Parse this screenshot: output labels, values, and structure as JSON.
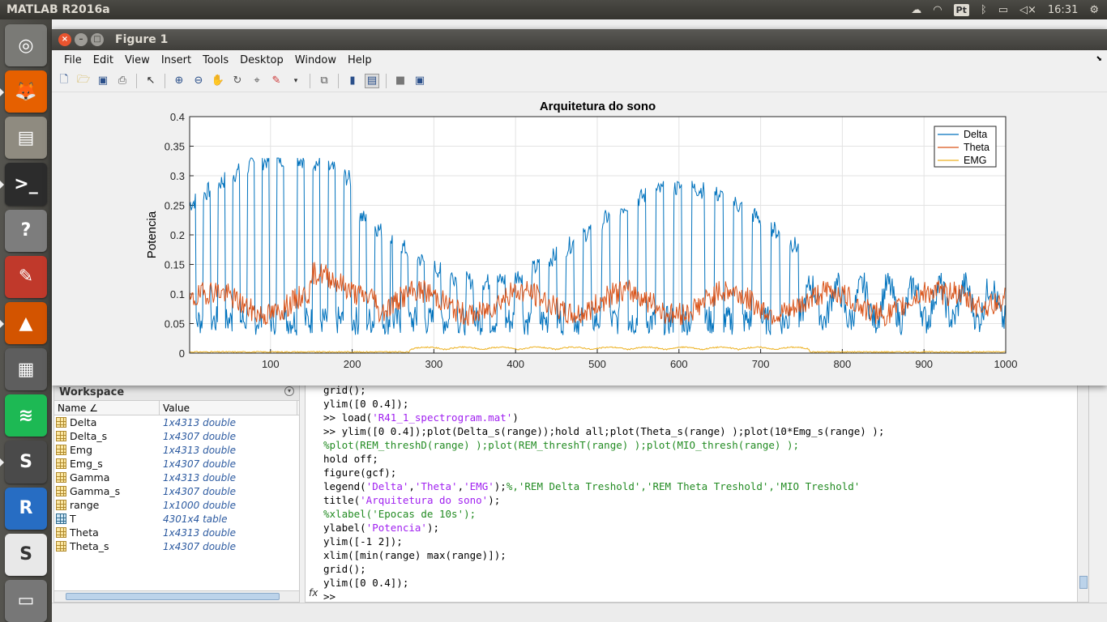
{
  "topbar": {
    "app_title": "MATLAB R2016a",
    "keyboard_indicator": "Pt",
    "clock": "16:31"
  },
  "launcher": {
    "items": [
      {
        "name": "dash",
        "color": "#7a7a76"
      },
      {
        "name": "firefox",
        "color": "#e66000"
      },
      {
        "name": "files",
        "color": "#8f8b80"
      },
      {
        "name": "terminal",
        "color": "#2c2c2c"
      },
      {
        "name": "help",
        "color": "#7d7d7d"
      },
      {
        "name": "document-viewer",
        "color": "#c0392b"
      },
      {
        "name": "matlab",
        "color": "#d35400"
      },
      {
        "name": "calculator",
        "color": "#5e5e5e"
      },
      {
        "name": "spotify",
        "color": "#1db954"
      },
      {
        "name": "sublime-text",
        "color": "#4a4a4a"
      },
      {
        "name": "r-language",
        "color": "#276dc3"
      },
      {
        "name": "slack",
        "color": "#e8e8e8"
      },
      {
        "name": "trash",
        "color": "#777"
      }
    ]
  },
  "figure": {
    "title": "Figure 1",
    "menu": [
      "File",
      "Edit",
      "View",
      "Insert",
      "Tools",
      "Desktop",
      "Window",
      "Help"
    ]
  },
  "chart_data": {
    "type": "line",
    "title": "Arquitetura do sono",
    "xlabel": "",
    "ylabel": "Potencia",
    "xlim": [
      1,
      1000
    ],
    "ylim": [
      0,
      0.4
    ],
    "xticks": [
      100,
      200,
      300,
      400,
      500,
      600,
      700,
      800,
      900,
      1000
    ],
    "yticks": [
      "0",
      "0.05",
      "0.1",
      "0.15",
      "0.2",
      "0.25",
      "0.3",
      "0.35",
      "0.4"
    ],
    "grid": true,
    "legend_location": "top-right",
    "series": [
      {
        "name": "Delta",
        "color": "#0072bd"
      },
      {
        "name": "Theta",
        "color": "#d95319"
      },
      {
        "name": "EMG",
        "color": "#edb120"
      }
    ]
  },
  "workspace": {
    "title": "Workspace",
    "col_name": "Name ∠",
    "col_value": "Value",
    "rows": [
      {
        "name": "Delta",
        "value": "1x4313 double",
        "kind": "double"
      },
      {
        "name": "Delta_s",
        "value": "1x4307 double",
        "kind": "double"
      },
      {
        "name": "Emg",
        "value": "1x4313 double",
        "kind": "double"
      },
      {
        "name": "Emg_s",
        "value": "1x4307 double",
        "kind": "double"
      },
      {
        "name": "Gamma",
        "value": "1x4313 double",
        "kind": "double"
      },
      {
        "name": "Gamma_s",
        "value": "1x4307 double",
        "kind": "double"
      },
      {
        "name": "range",
        "value": "1x1000 double",
        "kind": "double"
      },
      {
        "name": "T",
        "value": "4301x4 table",
        "kind": "table"
      },
      {
        "name": "Theta",
        "value": "1x4313 double",
        "kind": "double"
      },
      {
        "name": "Theta_s",
        "value": "1x4307 double",
        "kind": "double"
      }
    ]
  },
  "command_window": {
    "prompt": ">>",
    "fx": "fx",
    "lines": [
      "grid();",
      "ylim([0 0.4]);",
      ">> load('R41_1_spectrogram.mat')",
      ">> ylim([0 0.4]);plot(Delta_s(range));hold all;plot(Theta_s(range) );plot(10*Emg_s(range) );",
      "%plot(REM_threshD(range) );plot(REM_threshT(range) );plot(MIO_thresh(range) );",
      "hold off;",
      "figure(gcf);",
      "legend('Delta','Theta','EMG');%,'REM Delta Treshold','REM Theta Treshold','MIO Treshold'",
      "title('Arquitetura do sono');",
      "%xlabel('Epocas de 10s');",
      "ylabel('Potencia');",
      "ylim([-1 2]);",
      "xlim([min(range) max(range)]);",
      "grid();",
      "ylim([0 0.4]);"
    ]
  }
}
